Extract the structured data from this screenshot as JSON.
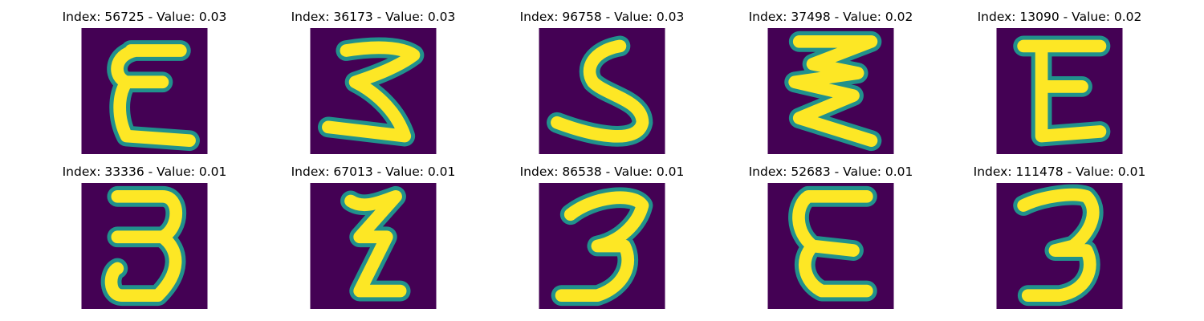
{
  "figure": {
    "background_color": "#ffffff",
    "image_background_color": "#440154",
    "image_stroke_color": "#fde725",
    "image_edge_color": "#21918c",
    "panels": [
      {
        "title": "Index: 56725 - Value: 0.03",
        "glyph": "E"
      },
      {
        "title": "Index: 36173 - Value: 0.03",
        "glyph": "3"
      },
      {
        "title": "Index: 96758 - Value: 0.03",
        "glyph": "S"
      },
      {
        "title": "Index: 37498 - Value: 0.02",
        "glyph": "3"
      },
      {
        "title": "Index: 13090 - Value: 0.02",
        "glyph": "E"
      },
      {
        "title": "Index: 33336 - Value: 0.01",
        "glyph": "3"
      },
      {
        "title": "Index: 67013 - Value: 0.01",
        "glyph": "Z"
      },
      {
        "title": "Index: 86538 - Value: 0.01",
        "glyph": "3"
      },
      {
        "title": "Index: 52683 - Value: 0.01",
        "glyph": "E"
      },
      {
        "title": "Index: 111478 - Value: 0.01",
        "glyph": "3"
      }
    ]
  }
}
